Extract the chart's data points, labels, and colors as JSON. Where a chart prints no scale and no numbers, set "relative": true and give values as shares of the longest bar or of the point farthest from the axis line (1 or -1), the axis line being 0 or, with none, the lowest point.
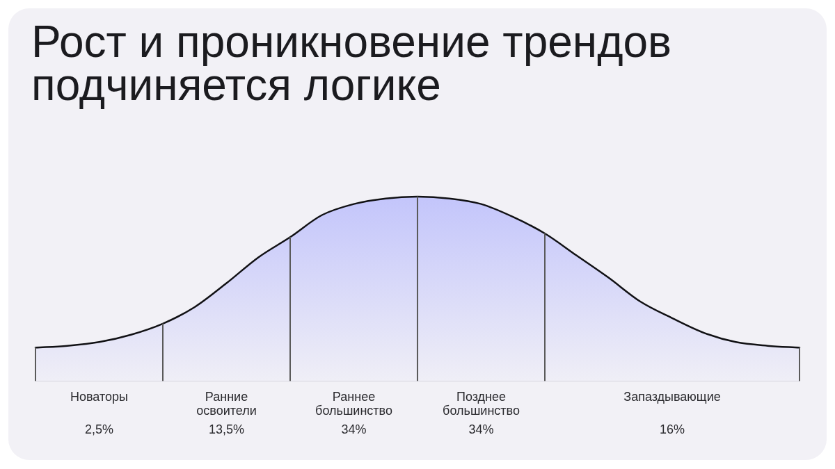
{
  "chart_data": {
    "type": "area",
    "title": "Рост и проникновение трендов подчиняется логике",
    "relative": true,
    "categories": [
      null,
      null,
      "Новаторы",
      null,
      null,
      null,
      "Ранние освоители",
      null,
      null,
      null,
      "Раннее большинство",
      null,
      null,
      null,
      "Позднее большинство",
      null,
      null,
      null,
      null,
      null,
      "Запаздывающие",
      null,
      null,
      null,
      null
    ],
    "series": [
      {
        "color": "#c3c5fb",
        "values": [
          0.18,
          0.19,
          0.21,
          0.25,
          0.31,
          0.4,
          0.53,
          0.67,
          0.78,
          0.9,
          0.96,
          0.99,
          1,
          0.99,
          0.96,
          0.89,
          0.8,
          0.68,
          0.56,
          0.43,
          0.34,
          0.26,
          0.21,
          0.19,
          0.18
        ]
      },
      {
        "type": "bar",
        "color": "#5a5a5a",
        "values": [
          0.18,
          null,
          null,
          null,
          0.31,
          null,
          null,
          null,
          0.78,
          null,
          null,
          null,
          1,
          null,
          null,
          null,
          0.8,
          null,
          null,
          null,
          null,
          null,
          null,
          null,
          0.18
        ]
      }
    ],
    "line_style": "solid",
    "annotations": [
      "2,5%",
      "13,5%",
      "34%",
      "34%",
      "16%"
    ]
  }
}
